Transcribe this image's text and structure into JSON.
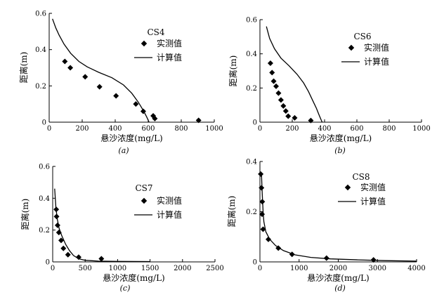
{
  "figure": {
    "legend_measured": "实测值",
    "legend_calculated": "计算值",
    "xlabel": "悬沙浓度(mg/L)",
    "ylabel": "距离(m)"
  },
  "chart_data": [
    {
      "type": "scatter",
      "panel_label": "(a)",
      "title": "CS4",
      "xlabel": "悬沙浓度(mg/L)",
      "ylabel": "距离(m)",
      "xlim": [
        0,
        1000
      ],
      "ylim": [
        0,
        0.6
      ],
      "xticks": [
        0,
        200,
        400,
        600,
        800,
        1000
      ],
      "yticks": [
        0,
        0.2,
        0.4,
        0.6
      ],
      "xtick_labels": [
        "0",
        "200",
        "400",
        "600",
        "800",
        "1000"
      ],
      "ytick_labels": [
        "0",
        "0.2",
        "0.4",
        "0.6"
      ],
      "legend": [
        "实测值",
        "计算值"
      ],
      "series": [
        {
          "name": "实测值",
          "kind": "markers",
          "x": [
            95,
            128,
            218,
            305,
            405,
            525,
            570,
            630,
            640,
            905
          ],
          "y": [
            0.335,
            0.3,
            0.25,
            0.195,
            0.145,
            0.1,
            0.06,
            0.035,
            0.02,
            0.01
          ]
        },
        {
          "name": "计算值",
          "kind": "line",
          "x": [
            20,
            40,
            60,
            90,
            130,
            180,
            230,
            300,
            380,
            450,
            500,
            540,
            570,
            590,
            605
          ],
          "y": [
            0.57,
            0.52,
            0.48,
            0.43,
            0.38,
            0.335,
            0.305,
            0.275,
            0.245,
            0.205,
            0.16,
            0.11,
            0.065,
            0.03,
            0.0
          ]
        }
      ]
    },
    {
      "type": "scatter",
      "panel_label": "(b)",
      "title": "CS6",
      "xlabel": "悬沙浓度(mg/L)",
      "ylabel": "距离(m)",
      "xlim": [
        0,
        1000
      ],
      "ylim": [
        0,
        0.6
      ],
      "xticks": [
        0,
        200,
        400,
        600,
        800,
        1000
      ],
      "yticks": [
        0,
        0.2,
        0.4,
        0.6
      ],
      "xtick_labels": [
        "0",
        "200",
        "400",
        "600",
        "800",
        "1000"
      ],
      "ytick_labels": [
        "0",
        "0.2",
        "0.4",
        "0.6"
      ],
      "legend": [
        "实测值",
        "计算值"
      ],
      "series": [
        {
          "name": "实测值",
          "kind": "markers",
          "x": [
            65,
            75,
            85,
            100,
            115,
            130,
            145,
            160,
            175,
            215,
            315
          ],
          "y": [
            0.345,
            0.29,
            0.24,
            0.21,
            0.17,
            0.13,
            0.095,
            0.065,
            0.035,
            0.025,
            0.01
          ]
        },
        {
          "name": "计算值",
          "kind": "line",
          "x": [
            40,
            60,
            90,
            130,
            180,
            230,
            270,
            300,
            330,
            350,
            365,
            378,
            385
          ],
          "y": [
            0.56,
            0.49,
            0.43,
            0.375,
            0.33,
            0.28,
            0.23,
            0.18,
            0.12,
            0.08,
            0.045,
            0.015,
            0.0
          ]
        }
      ]
    },
    {
      "type": "scatter",
      "panel_label": "(c)",
      "title": "CS7",
      "xlabel": "悬沙浓度(mg/L)",
      "ylabel": "距离(m)",
      "xlim": [
        0,
        2500
      ],
      "ylim": [
        0,
        0.6
      ],
      "xticks": [
        0,
        500,
        1000,
        1500,
        2000,
        2500
      ],
      "yticks": [
        0,
        0.2,
        0.4,
        0.6
      ],
      "xtick_labels": [
        "0",
        "500",
        "1000",
        "1500",
        "2000",
        "2500"
      ],
      "ytick_labels": [
        "0",
        "0.2",
        "0.4",
        "0.6"
      ],
      "legend": [
        "实测值",
        "计算值"
      ],
      "series": [
        {
          "name": "实测值",
          "kind": "markers",
          "x": [
            55,
            60,
            75,
            95,
            130,
            165,
            235,
            400,
            750
          ],
          "y": [
            0.33,
            0.285,
            0.23,
            0.185,
            0.135,
            0.085,
            0.045,
            0.03,
            0.02
          ]
        },
        {
          "name": "计算值",
          "kind": "line",
          "x": [
            30,
            50,
            70,
            100,
            140,
            200,
            260,
            320,
            400,
            500,
            700,
            1000,
            1500
          ],
          "y": [
            0.46,
            0.34,
            0.27,
            0.21,
            0.165,
            0.11,
            0.07,
            0.04,
            0.02,
            0.01,
            0.005,
            0.003,
            0.002
          ]
        }
      ]
    },
    {
      "type": "scatter",
      "panel_label": "(d)",
      "title": "CS8",
      "xlabel": "悬沙浓度(mg/L)",
      "ylabel": "距离(m)",
      "xlim": [
        0,
        4000
      ],
      "ylim": [
        0,
        0.4
      ],
      "xticks": [
        0,
        1000,
        2000,
        3000,
        4000
      ],
      "yticks": [
        0,
        0.2,
        0.4
      ],
      "xtick_labels": [
        "0",
        "1000",
        "2000",
        "3000",
        "4000"
      ],
      "ytick_labels": [
        "0",
        "0.2",
        "0.4"
      ],
      "legend": [
        "实测值",
        "计算值"
      ],
      "series": [
        {
          "name": "实测值",
          "kind": "markers",
          "x": [
            20,
            40,
            60,
            55,
            80,
            215,
            470,
            820,
            1700,
            2900
          ],
          "y": [
            0.35,
            0.295,
            0.24,
            0.19,
            0.13,
            0.09,
            0.055,
            0.03,
            0.015,
            0.008
          ]
        },
        {
          "name": "计算值",
          "kind": "line",
          "x": [
            40,
            60,
            80,
            100,
            150,
            250,
            400,
            600,
            900,
            1300,
            1800,
            2500,
            3200,
            4000
          ],
          "y": [
            0.35,
            0.27,
            0.2,
            0.16,
            0.12,
            0.09,
            0.065,
            0.045,
            0.028,
            0.018,
            0.012,
            0.008,
            0.005,
            0.003
          ]
        }
      ]
    }
  ]
}
